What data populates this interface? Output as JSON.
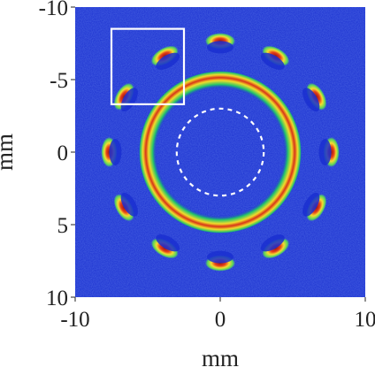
{
  "chart_data": {
    "type": "heatmap",
    "title": "",
    "xlabel": "mm",
    "ylabel": "mm",
    "xlim": [
      -10,
      10
    ],
    "ylim": [
      -10,
      10
    ],
    "y_axis_inverted": true,
    "x_ticks": [
      -10,
      0,
      10
    ],
    "x_tick_labels": [
      "-10",
      "0",
      "10"
    ],
    "y_ticks": [
      -10,
      -5,
      0,
      5,
      10
    ],
    "y_tick_labels": [
      "-10",
      "-5",
      "0",
      "5",
      "10"
    ],
    "colormap": "jet",
    "colors": {
      "background": "#1a2fd0",
      "ring_outer": "#22c46a",
      "ring_mid": "#f2dc2a",
      "ring_core": "#d83418",
      "spot_outer": "#59d65c",
      "spot_core": "#a11810",
      "annotation": "#ffffff"
    },
    "main_ring": {
      "center": [
        0,
        0
      ],
      "radius_mm": 5.15
    },
    "spots": {
      "count": 12,
      "orbit_radius_mm": 7.6,
      "angles_deg": [
        0,
        30,
        60,
        90,
        120,
        150,
        180,
        210,
        240,
        270,
        300,
        330
      ]
    },
    "dashed_circle": {
      "center": [
        0,
        0
      ],
      "radius_mm": 3.0
    },
    "highlight_box": {
      "x_range_mm": [
        -7.5,
        -2.5
      ],
      "y_range_mm": [
        -8.5,
        -3.3
      ]
    },
    "grid": false,
    "legend": "none"
  }
}
